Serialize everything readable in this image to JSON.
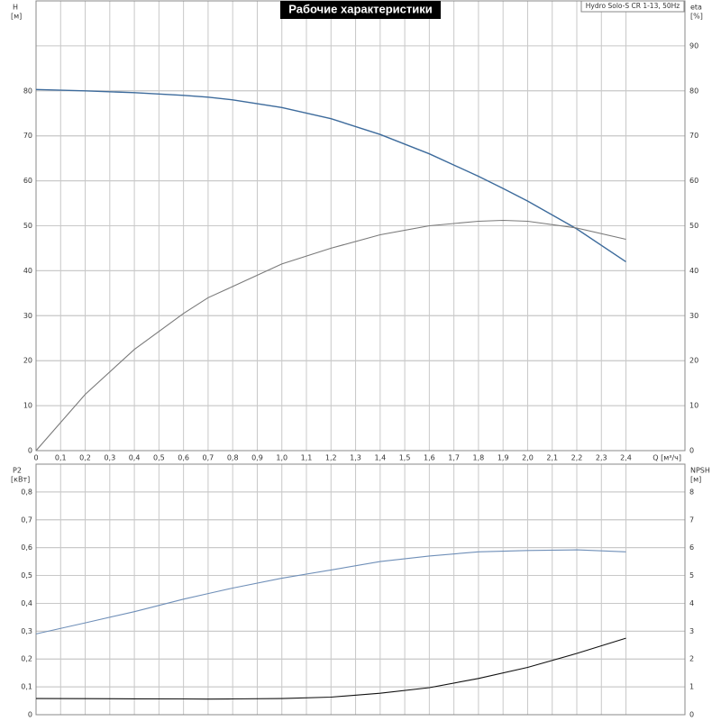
{
  "chart_data": [
    {
      "type": "line",
      "title": "Рабочие характеристики",
      "annotation": "Hydro Solo-S CR 1-13, 50Hz",
      "xlabel": "Q [м³/ч]",
      "ylabel": "H",
      "ylabel_unit": "[м]",
      "y2label": "eta",
      "y2label_unit": "[%]",
      "x": [
        0,
        0.2,
        0.4,
        0.6,
        0.7,
        0.8,
        1.0,
        1.2,
        1.4,
        1.6,
        1.8,
        1.9,
        2.0,
        2.2,
        2.4
      ],
      "series": [
        {
          "name": "H",
          "color": "#3d6b9c",
          "values": [
            80.3,
            80,
            79.6,
            79,
            78.6,
            78,
            76.3,
            73.8,
            70.3,
            66,
            61,
            58.3,
            55.5,
            49.3,
            42
          ]
        },
        {
          "name": "eta",
          "color": "#7a7a7a",
          "axis": "y2",
          "values": [
            0,
            12.5,
            22.5,
            30.5,
            34,
            36.5,
            41.5,
            45,
            48,
            50,
            51,
            51.2,
            51,
            49.5,
            47
          ]
        }
      ],
      "xlim": [
        0,
        2.64
      ],
      "xticks": [
        0,
        {
          "value": 0.1,
          "label": "0,1"
        },
        {
          "value": 0.2,
          "label": "0,2"
        },
        {
          "value": 0.3,
          "label": "0,3"
        },
        {
          "value": 0.4,
          "label": "0,4"
        },
        {
          "value": 0.5,
          "label": "0,5"
        },
        {
          "value": 0.6,
          "label": "0,6"
        },
        {
          "value": 0.7,
          "label": "0,7"
        },
        {
          "value": 0.8,
          "label": "0,8"
        },
        {
          "value": 0.9,
          "label": "0,9"
        },
        {
          "value": 1.0,
          "label": "1,0"
        },
        {
          "value": 1.1,
          "label": "1,1"
        },
        {
          "value": 1.2,
          "label": "1,2"
        },
        {
          "value": 1.3,
          "label": "1,3"
        },
        {
          "value": 1.4,
          "label": "1,4"
        },
        {
          "value": 1.5,
          "label": "1,5"
        },
        {
          "value": 1.6,
          "label": "1,6"
        },
        {
          "value": 1.7,
          "label": "1,7"
        },
        {
          "value": 1.8,
          "label": "1,8"
        },
        {
          "value": 1.9,
          "label": "1,9"
        },
        {
          "value": 2.0,
          "label": "2,0"
        },
        {
          "value": 2.1,
          "label": "2,1"
        },
        {
          "value": 2.2,
          "label": "2,2"
        },
        {
          "value": 2.3,
          "label": "2,3"
        },
        {
          "value": 2.4,
          "label": "2,4"
        }
      ],
      "ylim": [
        0,
        100
      ],
      "yticks": [
        0,
        10,
        20,
        30,
        40,
        50,
        60,
        70,
        80
      ],
      "y2lim": [
        0,
        100
      ],
      "y2ticks": [
        0,
        10,
        20,
        30,
        40,
        50,
        60,
        70,
        80,
        90
      ],
      "grid": true
    },
    {
      "type": "line",
      "ylabel": "P2",
      "ylabel_unit": "[кВт]",
      "y2label": "NPSH",
      "y2label_unit": "[м]",
      "x": [
        0,
        0.2,
        0.4,
        0.6,
        0.7,
        0.8,
        1.0,
        1.2,
        1.4,
        1.6,
        1.8,
        2.0,
        2.2,
        2.4
      ],
      "series": [
        {
          "name": "P2",
          "color": "#6f8fb8",
          "values": [
            0.29,
            0.33,
            0.37,
            0.415,
            0.435,
            0.455,
            0.49,
            0.52,
            0.55,
            0.57,
            0.585,
            0.59,
            0.592,
            0.585
          ]
        },
        {
          "name": "NPSH",
          "color": "#111111",
          "axis": "y2",
          "values": [
            0.58,
            0.575,
            0.57,
            0.565,
            0.56,
            0.565,
            0.58,
            0.63,
            0.77,
            0.97,
            1.3,
            1.7,
            2.2,
            2.75
          ]
        }
      ],
      "xlim": [
        0,
        2.64
      ],
      "ylim": [
        0,
        0.9
      ],
      "yticks": [
        0,
        {
          "value": 0.1,
          "label": "0,1"
        },
        {
          "value": 0.2,
          "label": "0,2"
        },
        {
          "value": 0.3,
          "label": "0,3"
        },
        {
          "value": 0.4,
          "label": "0,4"
        },
        {
          "value": 0.5,
          "label": "0,5"
        },
        {
          "value": 0.6,
          "label": "0,6"
        },
        {
          "value": 0.7,
          "label": "0,7"
        },
        {
          "value": 0.8,
          "label": "0,8"
        }
      ],
      "y2lim": [
        0,
        9
      ],
      "y2ticks": [
        0,
        1,
        2,
        3,
        4,
        5,
        6,
        7,
        8
      ],
      "grid": true
    }
  ]
}
